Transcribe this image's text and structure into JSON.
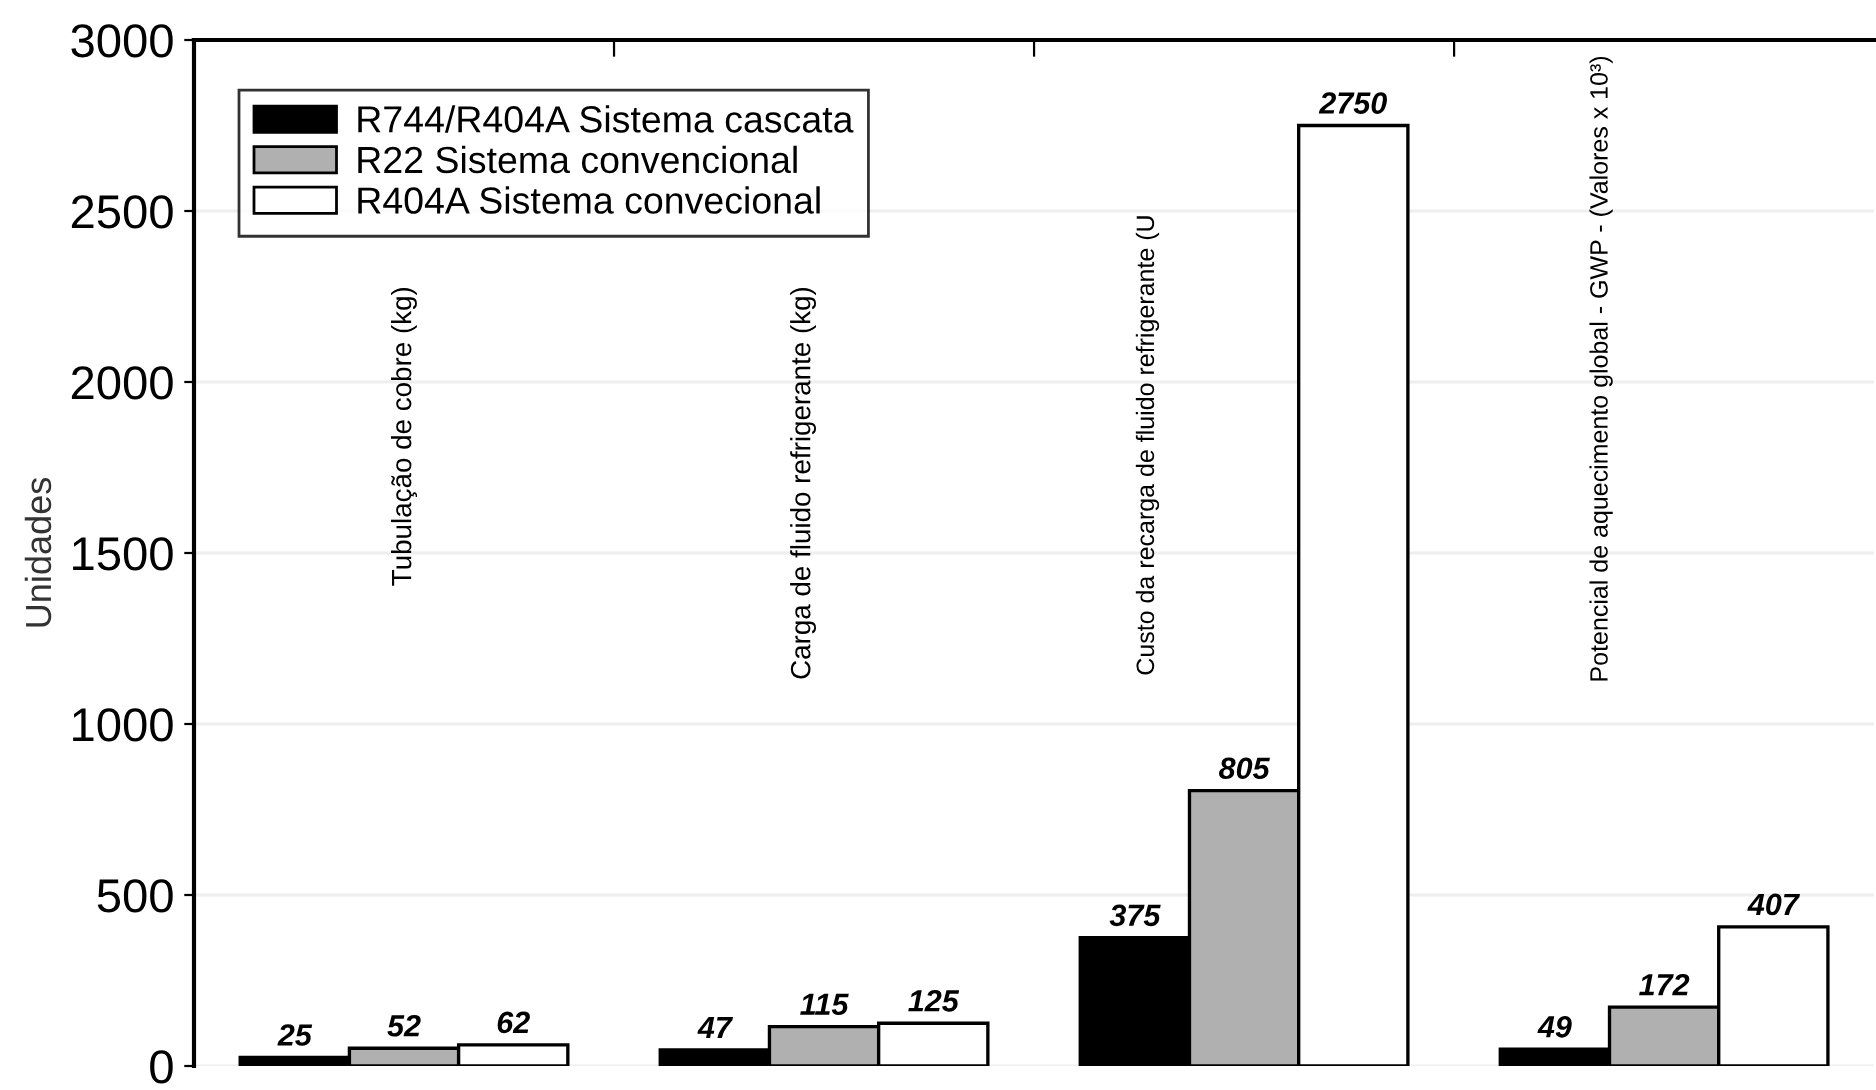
{
  "chart_data": {
    "type": "bar",
    "ylabel": "Unidades",
    "categories": [
      "Tubulação de cobre (kg)",
      "Carga de fluido refrigerante (kg)",
      "Custo da recarga de fluido refrigerante (U",
      "Potencial de aquecimento global - GWP - (Valores x 10³)"
    ],
    "series": [
      {
        "name": "R744/R404A Sistema cascata",
        "color": "#000000",
        "values": [
          25,
          47,
          375,
          49
        ]
      },
      {
        "name": "R22 Sistema convencional",
        "color": "#b0b0b0",
        "values": [
          52,
          115,
          805,
          172
        ]
      },
      {
        "name": "R404A Sistema convecional",
        "color": "#ffffff",
        "values": [
          62,
          125,
          2750,
          407
        ]
      }
    ],
    "ylim": [
      0,
      3000
    ],
    "yticks": [
      0,
      500,
      1000,
      1500,
      2000,
      2500,
      3000
    ],
    "grid": "y",
    "legend": "top left",
    "data_labels": true,
    "tick_labels": "y"
  }
}
